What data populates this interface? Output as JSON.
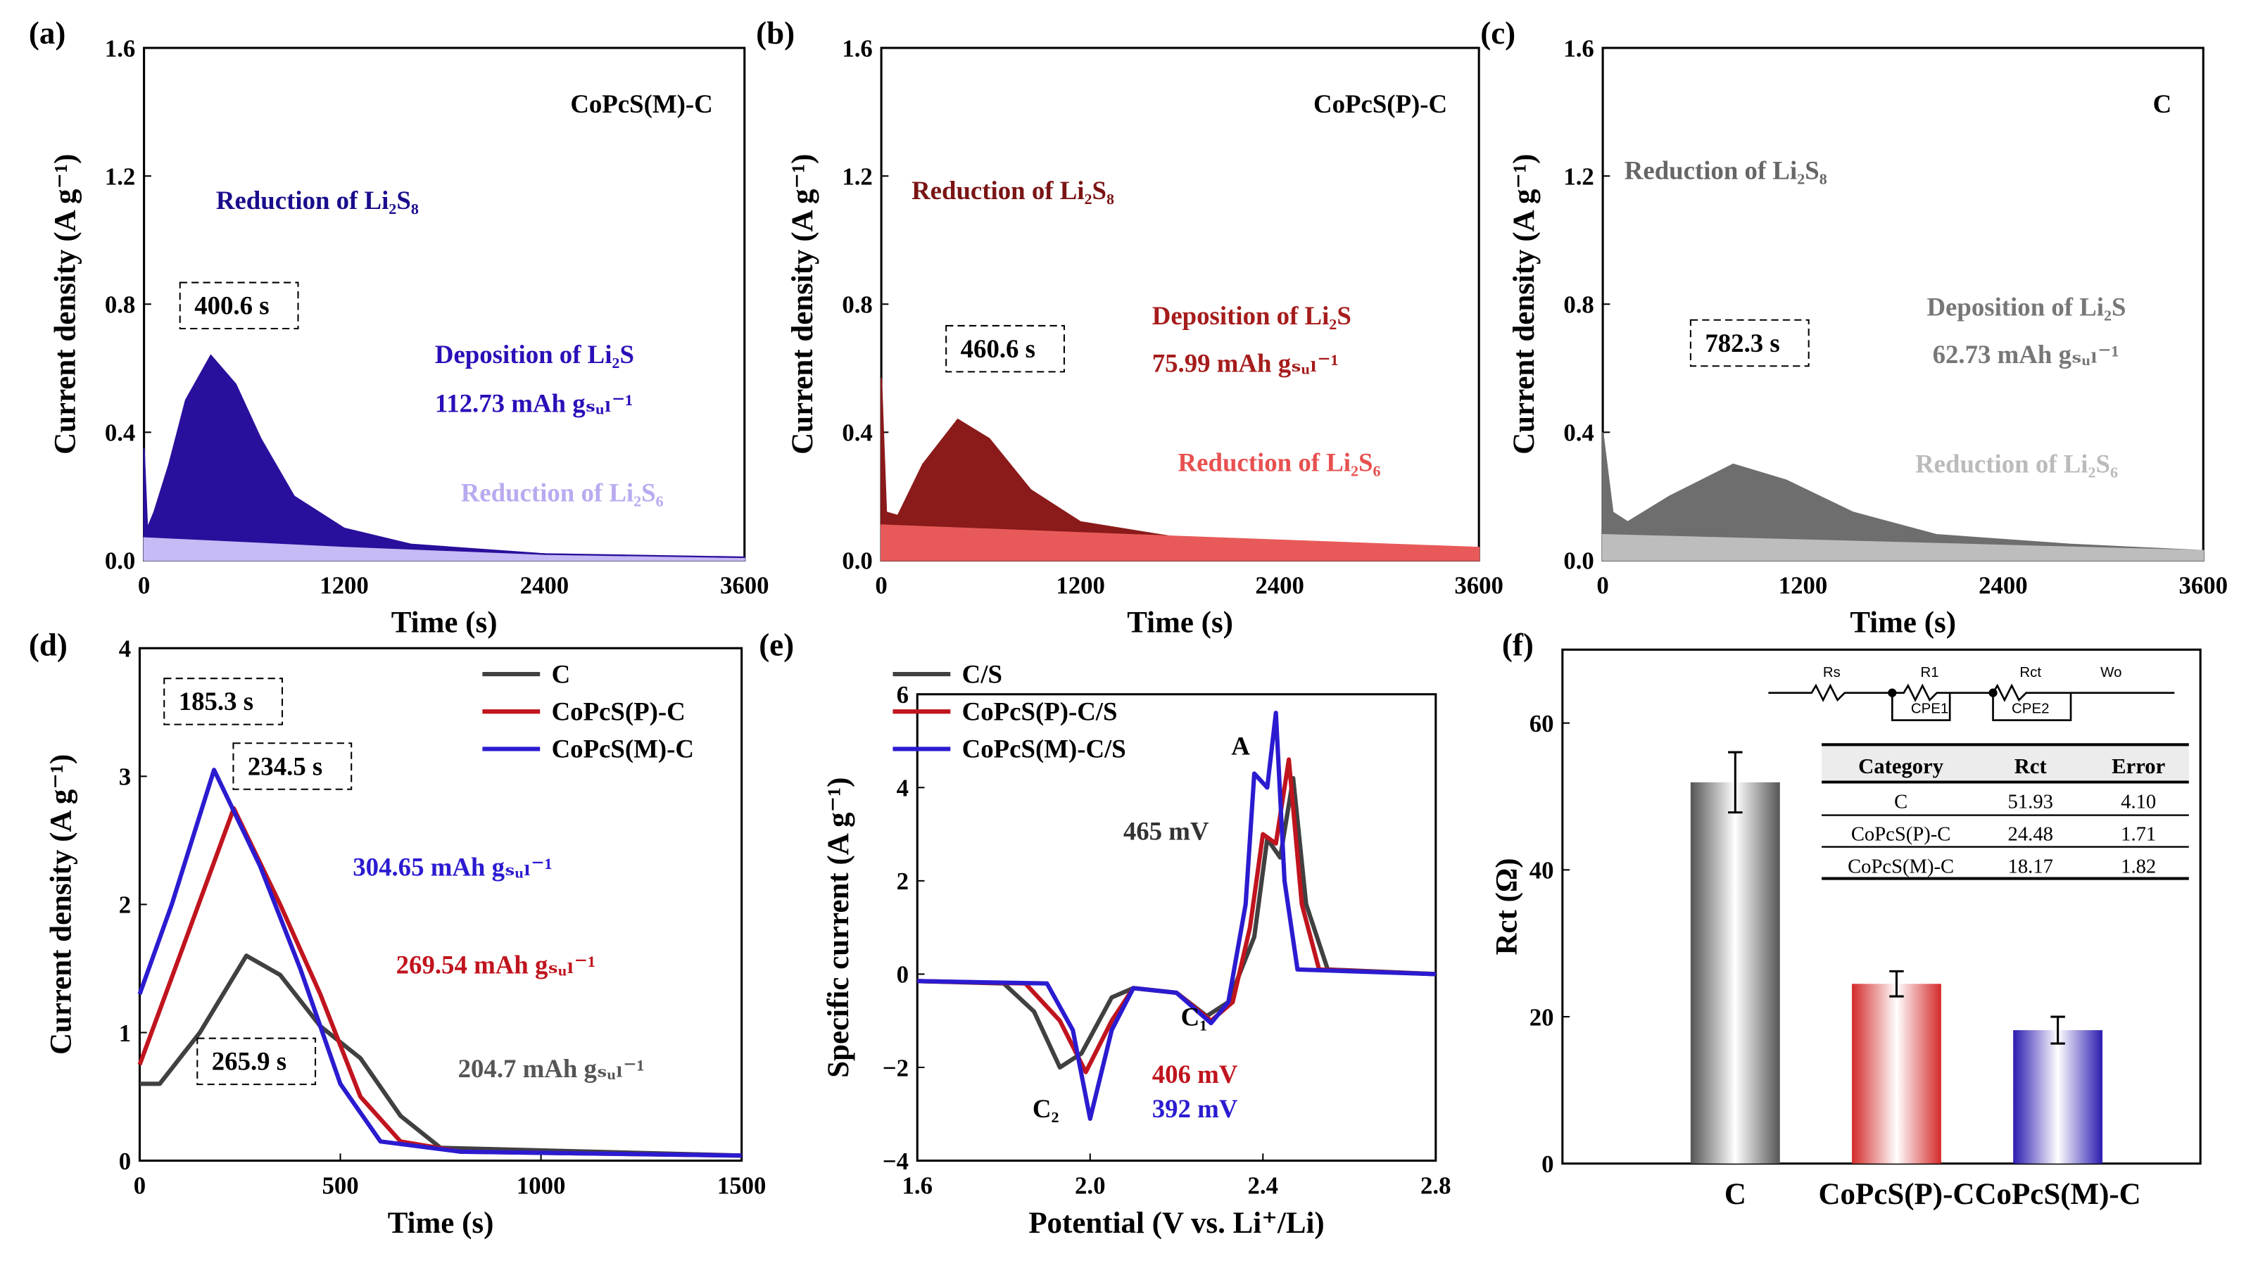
{
  "chart_data": [
    {
      "id": "a",
      "panel_label": "(a)",
      "type": "area",
      "title": "CoPcS(M)-C",
      "xlabel": "Time (s)",
      "ylabel": "Current density (A g⁻¹)",
      "xlim": [
        0,
        3600
      ],
      "ylim": [
        0,
        1.6
      ],
      "xticks": [
        0,
        1200,
        2400,
        3600
      ],
      "yticks": [
        0.0,
        0.4,
        0.8,
        1.2,
        1.6
      ],
      "series": [
        {
          "name": "total",
          "color": "#2a0f9c",
          "points": [
            [
              0,
              0.35
            ],
            [
              20,
              0.1
            ],
            [
              60,
              0.15
            ],
            [
              150,
              0.3
            ],
            [
              250,
              0.5
            ],
            [
              400.6,
              0.64
            ],
            [
              550,
              0.55
            ],
            [
              700,
              0.38
            ],
            [
              900,
              0.2
            ],
            [
              1200,
              0.1
            ],
            [
              1600,
              0.05
            ],
            [
              2400,
              0.02
            ],
            [
              3600,
              0.01
            ]
          ]
        },
        {
          "name": "Li2S6",
          "color": "#c7baf5",
          "points": [
            [
              0,
              0.07
            ],
            [
              1200,
              0.04
            ],
            [
              2400,
              0.015
            ],
            [
              3600,
              0.005
            ]
          ]
        }
      ],
      "annotations": [
        "Reduction of Li₂S₈",
        "400.6 s",
        "Deposition of Li₂S",
        "112.73 mAh gₛᵤₗ⁻¹",
        "Reduction of Li₂S₆"
      ]
    },
    {
      "id": "b",
      "panel_label": "(b)",
      "type": "area",
      "title": "CoPcS(P)-C",
      "xlabel": "Time (s)",
      "ylabel": "Current density (A g⁻¹)",
      "xlim": [
        0,
        3600
      ],
      "ylim": [
        0,
        1.6
      ],
      "xticks": [
        0,
        1200,
        2400,
        3600
      ],
      "yticks": [
        0.0,
        0.4,
        0.8,
        1.2,
        1.6
      ],
      "series": [
        {
          "name": "total",
          "color": "#8b1a1a",
          "points": [
            [
              0,
              0.57
            ],
            [
              30,
              0.15
            ],
            [
              100,
              0.14
            ],
            [
              250,
              0.3
            ],
            [
              460.6,
              0.44
            ],
            [
              650,
              0.38
            ],
            [
              900,
              0.22
            ],
            [
              1200,
              0.12
            ],
            [
              1800,
              0.07
            ],
            [
              2400,
              0.05
            ],
            [
              3600,
              0.04
            ]
          ]
        },
        {
          "name": "Li2S6",
          "color": "#e85a5a",
          "points": [
            [
              0,
              0.11
            ],
            [
              1500,
              0.08
            ],
            [
              3600,
              0.04
            ]
          ]
        }
      ],
      "annotations": [
        "Reduction of Li₂S₈",
        "460.6 s",
        "Deposition of Li₂S",
        "75.99 mAh gₛᵤₗ⁻¹",
        "Reduction of Li₂S₆"
      ]
    },
    {
      "id": "c",
      "panel_label": "(c)",
      "type": "area",
      "title": "C",
      "xlabel": "Time (s)",
      "ylabel": "Current density (A g⁻¹)",
      "xlim": [
        0,
        3600
      ],
      "ylim": [
        0,
        1.6
      ],
      "xticks": [
        0,
        1200,
        2400,
        3600
      ],
      "yticks": [
        0.0,
        0.4,
        0.8,
        1.2,
        1.6
      ],
      "series": [
        {
          "name": "total",
          "color": "#6e6e6e",
          "points": [
            [
              0,
              0.4
            ],
            [
              60,
              0.15
            ],
            [
              150,
              0.12
            ],
            [
              400,
              0.2
            ],
            [
              782.3,
              0.3
            ],
            [
              1100,
              0.25
            ],
            [
              1500,
              0.15
            ],
            [
              2000,
              0.08
            ],
            [
              2800,
              0.05
            ],
            [
              3600,
              0.03
            ]
          ]
        },
        {
          "name": "Li2S6",
          "color": "#bdbdbd",
          "points": [
            [
              0,
              0.08
            ],
            [
              3600,
              0.03
            ]
          ]
        }
      ],
      "annotations": [
        "Reduction of Li₂S₈",
        "782.3 s",
        "Deposition of Li₂S",
        "62.73 mAh gₛᵤₗ⁻¹",
        "Reduction of Li₂S₆"
      ]
    },
    {
      "id": "d",
      "panel_label": "(d)",
      "type": "line",
      "xlabel": "Time (s)",
      "ylabel": "Current density (A g⁻¹)",
      "xlim": [
        0,
        1500
      ],
      "ylim": [
        0,
        4
      ],
      "xticks": [
        0,
        500,
        1000,
        1500
      ],
      "yticks": [
        0,
        1,
        2,
        3,
        4
      ],
      "series": [
        {
          "name": "C",
          "color": "#404040",
          "points": [
            [
              0,
              0.6
            ],
            [
              50,
              0.6
            ],
            [
              150,
              1.0
            ],
            [
              265.9,
              1.6
            ],
            [
              350,
              1.45
            ],
            [
              450,
              1.05
            ],
            [
              550,
              0.8
            ],
            [
              650,
              0.35
            ],
            [
              750,
              0.1
            ],
            [
              1500,
              0.04
            ]
          ]
        },
        {
          "name": "CoPcS(P)-C",
          "color": "#c0141e",
          "points": [
            [
              0,
              0.75
            ],
            [
              100,
              1.6
            ],
            [
              234.5,
              2.75
            ],
            [
              350,
              2.0
            ],
            [
              450,
              1.3
            ],
            [
              550,
              0.5
            ],
            [
              650,
              0.15
            ],
            [
              800,
              0.07
            ],
            [
              1500,
              0.04
            ]
          ]
        },
        {
          "name": "CoPcS(M)-C",
          "color": "#2b1bd0",
          "points": [
            [
              0,
              1.3
            ],
            [
              80,
              2.0
            ],
            [
              185.3,
              3.05
            ],
            [
              300,
              2.3
            ],
            [
              400,
              1.5
            ],
            [
              500,
              0.6
            ],
            [
              600,
              0.15
            ],
            [
              800,
              0.07
            ],
            [
              1500,
              0.04
            ]
          ]
        }
      ],
      "annotations": [
        "185.3 s",
        "234.5 s",
        "304.65 mAh gₛᵤₗ⁻¹",
        "269.54 mAh gₛᵤₗ⁻¹",
        "265.9 s",
        "204.7 mAh gₛᵤₗ⁻¹"
      ],
      "legend": "top-right"
    },
    {
      "id": "e",
      "panel_label": "(e)",
      "type": "line",
      "xlabel": "Potential (V vs. Li⁺/Li)",
      "ylabel": "Specific current (A g⁻¹)",
      "xlim": [
        1.6,
        2.8
      ],
      "ylim": [
        -4,
        6
      ],
      "xticks": [
        1.6,
        2.0,
        2.4,
        2.8
      ],
      "yticks": [
        -4,
        -2,
        0,
        2,
        4,
        6
      ],
      "series": [
        {
          "name": "C/S",
          "color": "#404040",
          "points": [
            [
              1.6,
              -0.15
            ],
            [
              1.8,
              -0.2
            ],
            [
              1.87,
              -0.8
            ],
            [
              1.93,
              -2.0
            ],
            [
              1.98,
              -1.7
            ],
            [
              2.05,
              -0.5
            ],
            [
              2.1,
              -0.3
            ],
            [
              2.2,
              -0.4
            ],
            [
              2.27,
              -0.9
            ],
            [
              2.32,
              -0.6
            ],
            [
              2.38,
              0.8
            ],
            [
              2.41,
              2.9
            ],
            [
              2.44,
              2.5
            ],
            [
              2.47,
              4.2
            ],
            [
              2.5,
              1.5
            ],
            [
              2.55,
              0.1
            ],
            [
              2.8,
              0.0
            ]
          ]
        },
        {
          "name": "CoPcS(P)-C/S",
          "color": "#c0141e",
          "points": [
            [
              1.6,
              -0.15
            ],
            [
              1.85,
              -0.2
            ],
            [
              1.93,
              -1.0
            ],
            [
              1.99,
              -2.1
            ],
            [
              2.05,
              -1.0
            ],
            [
              2.1,
              -0.3
            ],
            [
              2.2,
              -0.4
            ],
            [
              2.28,
              -1.0
            ],
            [
              2.33,
              -0.6
            ],
            [
              2.37,
              1.0
            ],
            [
              2.4,
              3.0
            ],
            [
              2.43,
              2.8
            ],
            [
              2.46,
              4.6
            ],
            [
              2.49,
              1.5
            ],
            [
              2.53,
              0.1
            ],
            [
              2.8,
              0
            ]
          ]
        },
        {
          "name": "CoPcS(M)-C/S",
          "color": "#2b1bd0",
          "points": [
            [
              1.6,
              -0.15
            ],
            [
              1.9,
              -0.2
            ],
            [
              1.96,
              -1.2
            ],
            [
              2.0,
              -3.1
            ],
            [
              2.05,
              -1.2
            ],
            [
              2.1,
              -0.3
            ],
            [
              2.2,
              -0.4
            ],
            [
              2.28,
              -1.05
            ],
            [
              2.32,
              -0.6
            ],
            [
              2.36,
              1.5
            ],
            [
              2.38,
              4.3
            ],
            [
              2.41,
              4.0
            ],
            [
              2.43,
              5.6
            ],
            [
              2.45,
              2.0
            ],
            [
              2.48,
              0.1
            ],
            [
              2.8,
              0
            ]
          ]
        }
      ],
      "annotations": [
        "A",
        "465 mV",
        "C₁",
        "C₂",
        "406 mV",
        "392 mV"
      ],
      "legend": "top-left"
    },
    {
      "id": "f",
      "panel_label": "(f)",
      "type": "bar",
      "xlabel": "",
      "ylabel": "Rct (Ω)",
      "ylim": [
        0,
        70
      ],
      "yticks": [
        0,
        20,
        40,
        60
      ],
      "categories": [
        "C",
        "CoPcS(P)-C",
        "CoPcS(M)-C"
      ],
      "values": [
        51.93,
        24.48,
        18.17
      ],
      "errors": [
        4.1,
        1.71,
        1.82
      ],
      "colors": [
        "#555555",
        "#d42a2a",
        "#2b1bb0"
      ],
      "circuit": [
        "Rs",
        "R1",
        "CPE1",
        "Rct",
        "CPE2",
        "Wo"
      ],
      "table": {
        "headers": [
          "Category",
          "Rct",
          "Error"
        ],
        "rows": [
          [
            "C",
            "51.93",
            "4.10"
          ],
          [
            "CoPcS(P)-C",
            "24.48",
            "1.71"
          ],
          [
            "CoPcS(M)-C",
            "18.17",
            "1.82"
          ]
        ]
      }
    }
  ]
}
